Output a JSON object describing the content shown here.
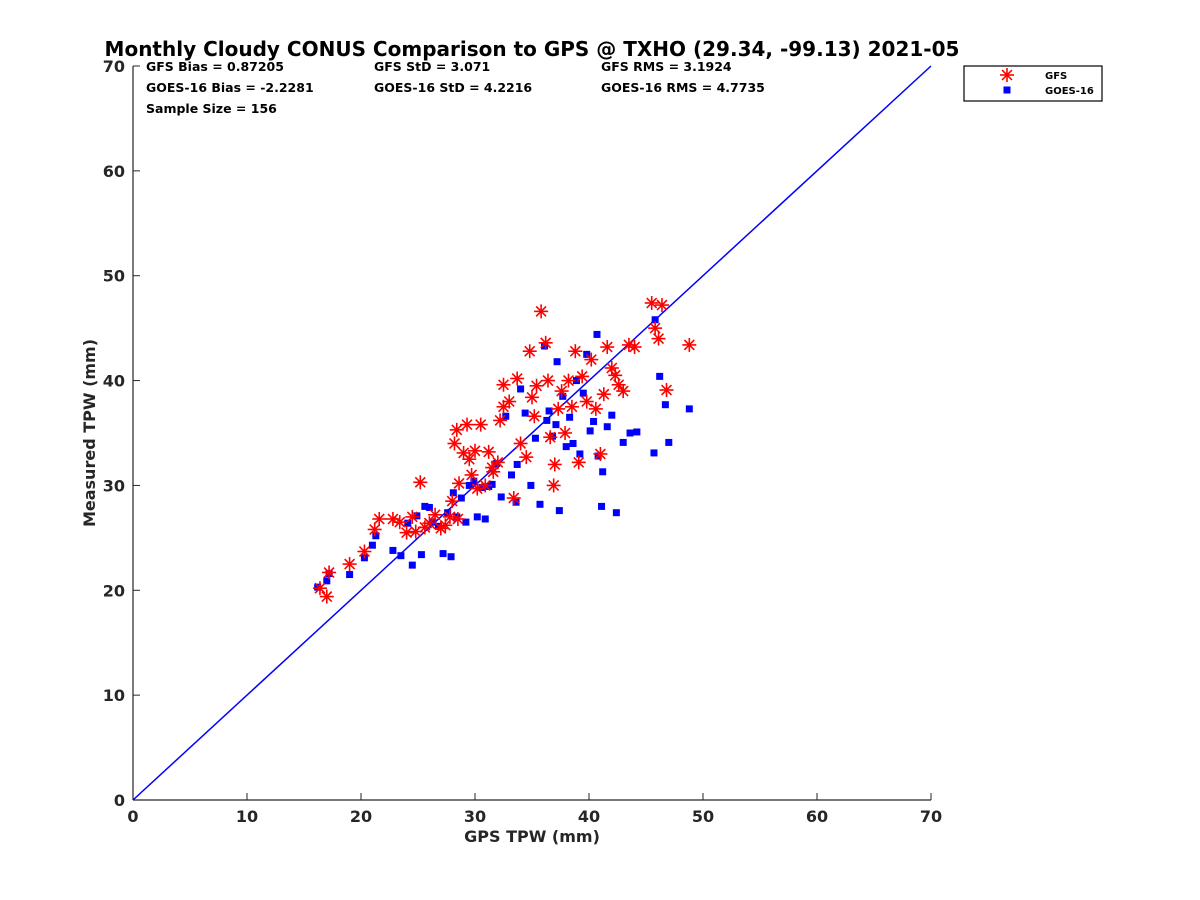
{
  "chart_data": {
    "type": "scatter",
    "title": "Monthly Cloudy CONUS Comparison to GPS @ TXHO (29.34, -99.13) 2021-05",
    "xlabel": "GPS TPW (mm)",
    "ylabel": "Measured TPW (mm)",
    "xlim": [
      0,
      70
    ],
    "ylim": [
      0,
      70
    ],
    "xticks": [
      0,
      10,
      20,
      30,
      40,
      50,
      60,
      70
    ],
    "yticks": [
      0,
      10,
      20,
      30,
      40,
      50,
      60,
      70
    ],
    "grid": false,
    "legend_position": "top-right, outside plot",
    "reference_line": {
      "x": [
        0,
        70
      ],
      "y": [
        0,
        70
      ],
      "color": "#0000ff"
    },
    "stats": [
      {
        "label": "GFS Bias = 0.87205"
      },
      {
        "label": "GFS StD = 3.071"
      },
      {
        "label": "GFS RMS = 3.1924"
      },
      {
        "label": "GOES-16 Bias = -2.2281"
      },
      {
        "label": "GOES-16 StD = 4.2216"
      },
      {
        "label": "GOES-16 RMS = 4.7735"
      },
      {
        "label": "Sample Size = 156"
      }
    ],
    "series": [
      {
        "name": "GFS",
        "marker": "asterisk",
        "color": "#ff0000",
        "x": [
          16.4,
          17.0,
          17.2,
          19.0,
          20.3,
          21.2,
          21.6,
          22.8,
          23.4,
          24.0,
          24.5,
          24.8,
          25.2,
          25.6,
          26.0,
          26.5,
          27.0,
          27.4,
          27.8,
          28.0,
          28.2,
          28.4,
          28.6,
          29.0,
          29.3,
          29.5,
          29.7,
          30.0,
          30.2,
          30.5,
          30.9,
          31.2,
          31.6,
          32.0,
          32.2,
          32.5,
          33.0,
          33.4,
          33.7,
          34.0,
          34.5,
          34.8,
          35.0,
          35.4,
          35.8,
          36.2,
          36.4,
          36.6,
          36.9,
          37.0,
          37.3,
          37.6,
          37.9,
          38.2,
          38.5,
          38.8,
          39.1,
          39.4,
          39.8,
          40.2,
          40.6,
          41.0,
          41.3,
          41.6,
          42.0,
          42.3,
          42.6,
          43.0,
          43.5,
          44.0,
          45.5,
          45.8,
          46.1,
          46.4,
          46.8,
          48.8,
          35.2,
          32.5,
          31.5,
          28.5
        ],
        "y": [
          20.2,
          19.4,
          21.7,
          22.5,
          23.7,
          25.8,
          26.8,
          26.8,
          26.5,
          25.5,
          27.0,
          25.6,
          30.3,
          26.0,
          26.4,
          27.2,
          25.9,
          26.2,
          27.0,
          28.5,
          34.0,
          35.3,
          30.2,
          33.1,
          35.8,
          32.5,
          31.0,
          33.3,
          29.7,
          35.8,
          30.0,
          33.2,
          31.3,
          32.2,
          36.2,
          39.6,
          38.0,
          28.8,
          40.2,
          34.0,
          32.7,
          42.8,
          38.4,
          39.5,
          46.6,
          43.6,
          40.0,
          34.6,
          30.0,
          32.0,
          37.3,
          39.0,
          35.0,
          40.0,
          37.5,
          42.8,
          32.2,
          40.4,
          38.0,
          42.0,
          37.3,
          33.0,
          38.7,
          43.2,
          41.2,
          40.5,
          39.6,
          39.0,
          43.4,
          43.2,
          47.4,
          45.0,
          44.0,
          47.2,
          39.1,
          43.4,
          36.6,
          37.5,
          31.7,
          26.8
        ]
      },
      {
        "name": "GOES-16",
        "marker": "square",
        "color": "#0000ff",
        "x": [
          16.2,
          17.0,
          17.2,
          19.0,
          20.3,
          21.0,
          21.3,
          22.8,
          23.5,
          24.1,
          24.5,
          24.9,
          25.3,
          25.6,
          26.0,
          26.3,
          26.8,
          27.2,
          27.6,
          27.9,
          28.1,
          28.4,
          28.8,
          29.2,
          29.5,
          29.9,
          30.2,
          30.6,
          30.9,
          31.2,
          31.5,
          31.9,
          32.3,
          32.7,
          33.2,
          33.6,
          34.0,
          34.4,
          34.9,
          35.3,
          35.7,
          36.1,
          36.5,
          36.8,
          37.1,
          37.4,
          37.7,
          38.0,
          38.3,
          38.6,
          38.9,
          39.2,
          39.5,
          39.8,
          40.1,
          40.4,
          40.8,
          41.2,
          41.6,
          42.0,
          42.4,
          43.0,
          43.6,
          44.2,
          45.8,
          46.2,
          46.7,
          47.0,
          48.8,
          40.7,
          37.2,
          33.7,
          36.3,
          41.1,
          45.7
        ],
        "y": [
          20.3,
          20.9,
          21.6,
          21.5,
          23.1,
          24.3,
          25.2,
          23.8,
          23.3,
          26.4,
          22.4,
          27.1,
          23.4,
          28.0,
          27.9,
          26.5,
          26.1,
          23.5,
          27.4,
          23.2,
          29.3,
          27.0,
          28.8,
          26.5,
          30.0,
          30.4,
          27.0,
          29.8,
          26.8,
          29.9,
          30.1,
          32.1,
          28.9,
          36.6,
          31.0,
          28.4,
          39.2,
          36.9,
          30.0,
          34.5,
          28.2,
          43.3,
          37.1,
          34.7,
          35.8,
          27.6,
          38.5,
          33.7,
          36.5,
          34.0,
          40.0,
          33.0,
          38.8,
          42.5,
          35.2,
          36.1,
          32.8,
          31.3,
          35.6,
          36.7,
          27.4,
          34.1,
          35.0,
          35.1,
          45.8,
          40.4,
          37.7,
          34.1,
          37.3,
          44.4,
          41.8,
          32.0,
          36.2,
          28.0,
          33.1
        ]
      }
    ]
  }
}
